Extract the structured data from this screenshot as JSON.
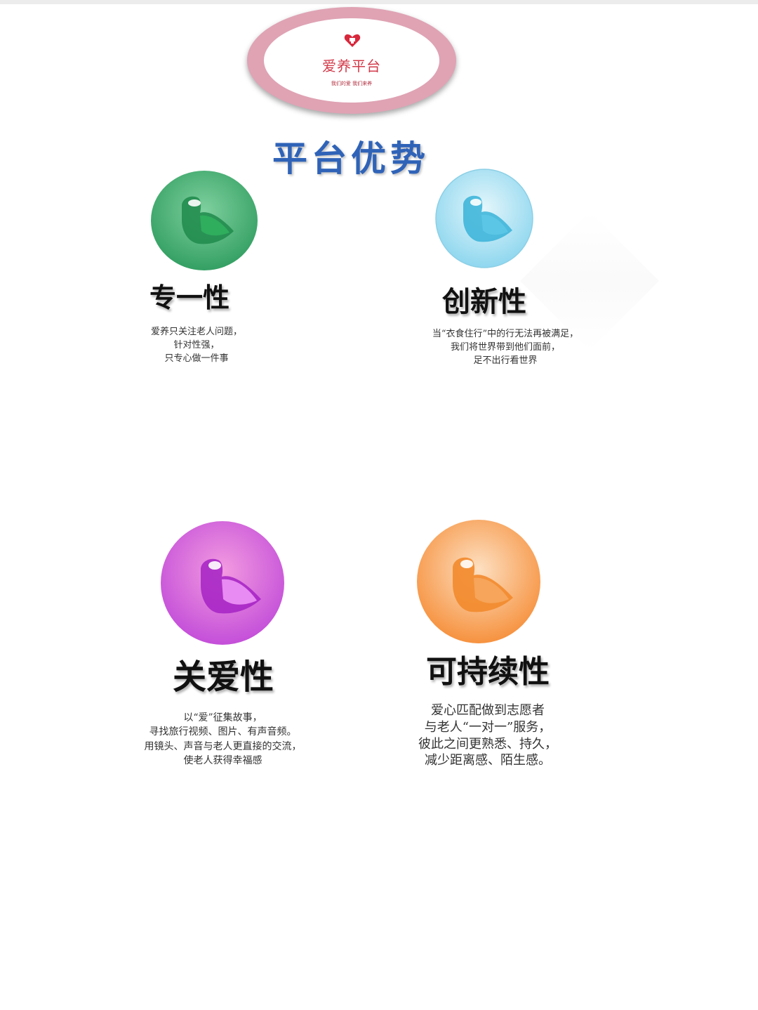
{
  "logo": {
    "name": "爱养平台",
    "slogan": "我们的爱 我们来养",
    "icon": "heart-icon"
  },
  "title": "平台优势",
  "features": [
    {
      "title": "专一性",
      "color": "#3aa36a",
      "icon": "bird-icon",
      "desc": [
        "爱养只关注老人问题，",
        "针对性强，",
        "只专心做一件事"
      ]
    },
    {
      "title": "创新性",
      "color": "#7fd3ee",
      "icon": "bird-icon",
      "desc": [
        "当“衣食住行”中的行无法再被满足，",
        "我们将世界带到他们面前，",
        "足不出行看世界"
      ]
    },
    {
      "title": "关爱性",
      "color": "#d45ad9",
      "icon": "bird-icon",
      "desc": [
        "以“爱”征集故事，",
        "寻找旅行视频、图片、有声音频。",
        "用镜头、声音与老人更直接的交流，",
        "使老人获得幸福感"
      ]
    },
    {
      "title": "可持续性",
      "color": "#f7934a",
      "icon": "bird-icon",
      "desc": [
        "爱心匹配做到志愿者",
        "与老人“一对一”服务，",
        "彼此之间更熟悉、持久，",
        "减少距离感、陌生感。"
      ]
    }
  ]
}
